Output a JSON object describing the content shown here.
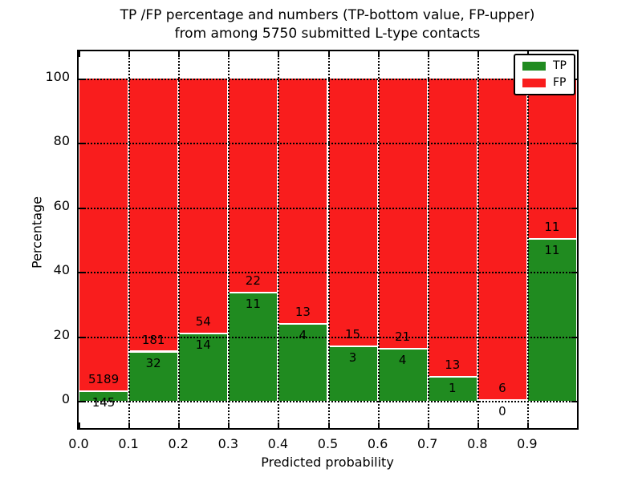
{
  "title": {
    "line1": "TP /FP percentage and numbers (TP-bottom value, FP-upper)",
    "line2": "from among 5750 submitted L-type contacts"
  },
  "chart_data": {
    "type": "bar",
    "stacked": true,
    "title": "TP /FP percentage and numbers (TP-bottom value, FP-upper) from among 5750 submitted L-type contacts",
    "xlabel": "Predicted probability",
    "ylabel": "Percentage",
    "total_contacts": 5750,
    "xlim": [
      0.0,
      1.0
    ],
    "ylim": [
      -8.5,
      108.5
    ],
    "yticks": [
      0,
      20,
      40,
      60,
      80,
      100
    ],
    "ytick_labels": [
      "0",
      "20",
      "40",
      "60",
      "80",
      "100"
    ],
    "xticks": [
      0.0,
      0.1,
      0.2,
      0.3,
      0.4,
      0.5,
      0.6,
      0.7,
      0.8,
      0.9
    ],
    "xtick_labels": [
      "0.0",
      "0.1",
      "0.2",
      "0.3",
      "0.4",
      "0.5",
      "0.6",
      "0.7",
      "0.8",
      "0.9"
    ],
    "grid": true,
    "grid_style": "dotted",
    "bar_width": 0.1,
    "legend": {
      "position": "upper right",
      "entries": [
        {
          "label": "TP",
          "color": "#208b20"
        },
        {
          "label": "FP",
          "color": "#f91d1d"
        }
      ]
    },
    "bins": [
      {
        "x0": 0.0,
        "x1": 0.1,
        "tp": 145,
        "fp": 5189,
        "tp_percent": 2.72
      },
      {
        "x0": 0.1,
        "x1": 0.2,
        "tp": 32,
        "fp": 181,
        "tp_percent": 15.02
      },
      {
        "x0": 0.2,
        "x1": 0.3,
        "tp": 14,
        "fp": 54,
        "tp_percent": 20.59
      },
      {
        "x0": 0.3,
        "x1": 0.4,
        "tp": 11,
        "fp": 22,
        "tp_percent": 33.33
      },
      {
        "x0": 0.4,
        "x1": 0.5,
        "tp": 4,
        "fp": 13,
        "tp_percent": 23.53
      },
      {
        "x0": 0.5,
        "x1": 0.6,
        "tp": 3,
        "fp": 15,
        "tp_percent": 16.67
      },
      {
        "x0": 0.6,
        "x1": 0.7,
        "tp": 4,
        "fp": 21,
        "tp_percent": 16.0
      },
      {
        "x0": 0.7,
        "x1": 0.8,
        "tp": 1,
        "fp": 13,
        "tp_percent": 7.14
      },
      {
        "x0": 0.8,
        "x1": 0.9,
        "tp": 0,
        "fp": 6,
        "tp_percent": 0.0
      },
      {
        "x0": 0.9,
        "x1": 1.0,
        "tp": 11,
        "fp": 11,
        "tp_percent": 50.0
      }
    ],
    "colors": {
      "tp": "#208b20",
      "fp": "#f91d1d",
      "grid": "#000000",
      "background": "#ffffff"
    }
  }
}
